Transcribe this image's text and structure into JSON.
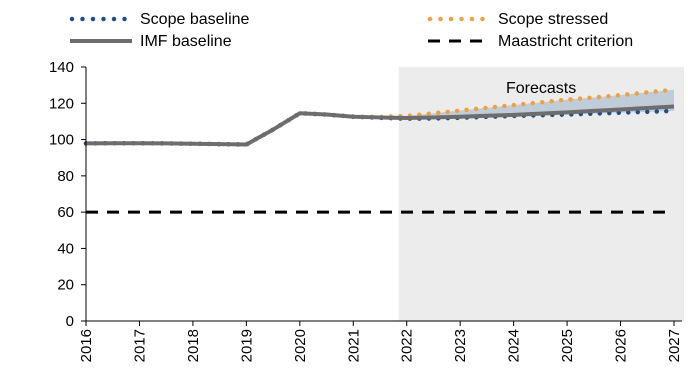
{
  "chart_data": {
    "type": "line",
    "x": [
      "2016",
      "2017",
      "2018",
      "2019",
      "2020",
      "2021",
      "2022",
      "2023",
      "2024",
      "2025",
      "2026",
      "2027"
    ],
    "x_numeric": [
      2016,
      2017,
      2018,
      2019,
      2020,
      2021,
      2022,
      2023,
      2024,
      2025,
      2026,
      2027
    ],
    "ylim": [
      0,
      140
    ],
    "xlim": [
      2016,
      2027
    ],
    "yticks": [
      0,
      20,
      40,
      60,
      80,
      100,
      120,
      140
    ],
    "forecast_start": 2021.85,
    "annotation": "Forecasts",
    "legend_placement": "top",
    "series": [
      {
        "name": "Scope baseline",
        "style": "dotted",
        "color": "#1f4e8c",
        "points": [
          [
            2016,
            97.9
          ],
          [
            2016.5,
            98.0
          ],
          [
            2017,
            98.0
          ],
          [
            2017.5,
            97.9
          ],
          [
            2018,
            97.7
          ],
          [
            2018.5,
            97.5
          ],
          [
            2019,
            97.3
          ],
          [
            2019.5,
            105.5
          ],
          [
            2020,
            114.5
          ],
          [
            2020.5,
            113.8
          ],
          [
            2021,
            112.6
          ],
          [
            2021.5,
            112.0
          ],
          [
            2022,
            111.5
          ],
          [
            2022.5,
            111.6
          ],
          [
            2023,
            112.0
          ],
          [
            2023.5,
            112.5
          ],
          [
            2024,
            113.0
          ],
          [
            2024.5,
            113.4
          ],
          [
            2025,
            113.8
          ],
          [
            2025.5,
            114.3
          ],
          [
            2026,
            114.8
          ],
          [
            2026.5,
            115.3
          ],
          [
            2027,
            115.8
          ]
        ]
      },
      {
        "name": "Scope stressed",
        "style": "dotted",
        "color": "#f0a040",
        "points": [
          [
            2016,
            97.9
          ],
          [
            2016.5,
            98.0
          ],
          [
            2017,
            98.0
          ],
          [
            2017.5,
            97.9
          ],
          [
            2018,
            97.7
          ],
          [
            2018.5,
            97.5
          ],
          [
            2019,
            97.3
          ],
          [
            2019.5,
            105.5
          ],
          [
            2020,
            114.5
          ],
          [
            2020.5,
            113.8
          ],
          [
            2021,
            112.6
          ],
          [
            2021.5,
            112.5
          ],
          [
            2022,
            113.0
          ],
          [
            2022.5,
            114.5
          ],
          [
            2023,
            116.0
          ],
          [
            2023.5,
            117.5
          ],
          [
            2024,
            119.0
          ],
          [
            2024.5,
            120.5
          ],
          [
            2025,
            122.0
          ],
          [
            2025.5,
            123.2
          ],
          [
            2026,
            124.5
          ],
          [
            2026.5,
            126.0
          ],
          [
            2027,
            127.5
          ]
        ]
      },
      {
        "name": "IMF baseline",
        "style": "solid",
        "color": "#6d6d6d",
        "points": [
          [
            2016,
            97.9
          ],
          [
            2016.5,
            98.0
          ],
          [
            2017,
            98.0
          ],
          [
            2017.5,
            97.9
          ],
          [
            2018,
            97.7
          ],
          [
            2018.5,
            97.5
          ],
          [
            2019,
            97.3
          ],
          [
            2019.5,
            105.5
          ],
          [
            2020,
            114.5
          ],
          [
            2020.5,
            113.8
          ],
          [
            2021,
            112.6
          ],
          [
            2021.5,
            112.2
          ],
          [
            2022,
            111.9
          ],
          [
            2022.5,
            112.2
          ],
          [
            2023,
            112.6
          ],
          [
            2023.5,
            113.1
          ],
          [
            2024,
            113.6
          ],
          [
            2024.5,
            114.3
          ],
          [
            2025,
            115.0
          ],
          [
            2025.5,
            115.8
          ],
          [
            2026,
            116.6
          ],
          [
            2026.5,
            117.4
          ],
          [
            2027,
            118.2
          ]
        ]
      },
      {
        "name": "Maastricht criterion",
        "style": "dashed",
        "color": "#000000",
        "points": [
          [
            2016,
            60
          ],
          [
            2027,
            60
          ]
        ]
      }
    ],
    "band": {
      "lower_series": "Scope baseline",
      "upper_series": "Scope stressed",
      "color": "#b8c8d6",
      "from": 2021.5
    },
    "shade_color": "#ececec"
  }
}
